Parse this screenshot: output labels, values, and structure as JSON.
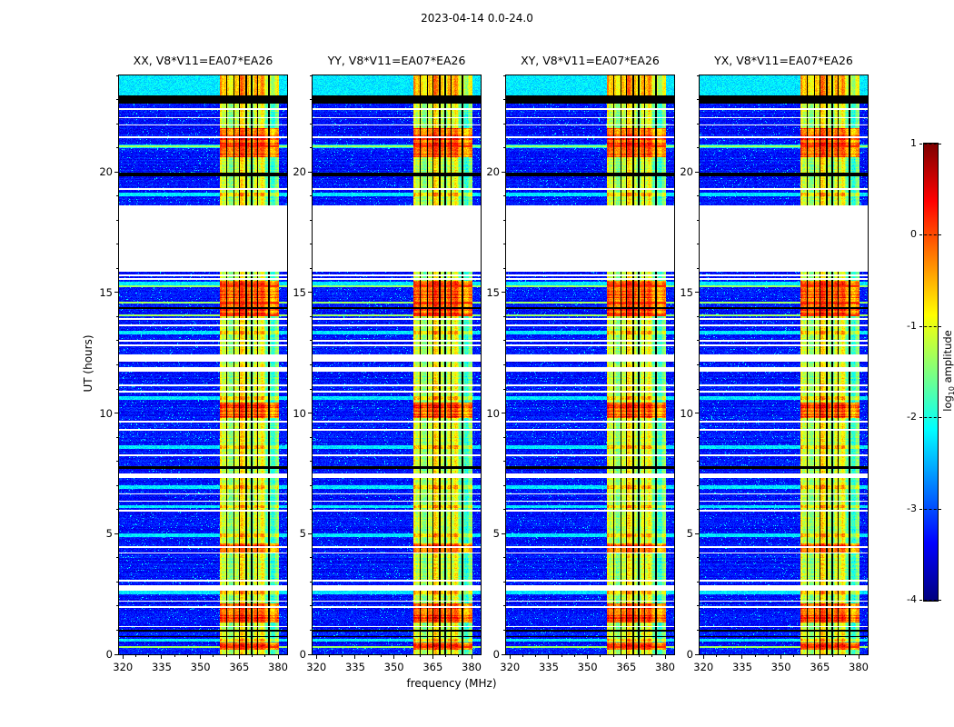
{
  "figure": {
    "title": "2023-04-14 0.0-24.0"
  },
  "axes": {
    "xlabel": "frequency (MHz)",
    "ylabel": "UT (hours)",
    "x_ticks": [
      320,
      335,
      350,
      365,
      380
    ],
    "y_ticks": [
      0,
      5,
      10,
      15,
      20
    ],
    "x_minor_step": 5,
    "y_minor_step": 1
  },
  "colorbar": {
    "label_parts": [
      "log",
      "10",
      " amplitude"
    ],
    "ticks": [
      1,
      0,
      -1,
      -2,
      -3,
      -4
    ],
    "range": [
      -4,
      1
    ]
  },
  "chart_data": {
    "type": "heatmap",
    "title": "2023-04-14 0.0-24.0",
    "panels": [
      "XX, V8*V11=EA07*EA26",
      "YY, V8*V11=EA07*EA26",
      "XY, V8*V11=EA07*EA26",
      "YX, V8*V11=EA07*EA26"
    ],
    "xlabel": "frequency (MHz)",
    "ylabel": "UT (hours)",
    "freq_range_mhz": [
      318.5,
      383.5
    ],
    "time_range_ut": [
      0,
      24
    ],
    "colormap": "jet",
    "amplitude_log10_range": [
      -4,
      1
    ],
    "rfi_band_mhz": [
      357.5,
      380.5
    ],
    "band_dark_channels_mhz": [
      360.2,
      362.9,
      365.1,
      367.6,
      369.9,
      372.1,
      376.4
    ],
    "data_gap_ranges_ut": [
      [
        15.85,
        18.6
      ],
      [
        12.15,
        12.45
      ],
      [
        11.7,
        11.9
      ],
      [
        7.3,
        7.5
      ],
      [
        2.65,
        2.85
      ]
    ],
    "thin_gap_lines_ut": [
      22.6,
      22.25,
      21.95,
      21.45,
      19.3,
      15.7,
      15.55,
      13.9,
      13.65,
      13.0,
      12.8,
      11.15,
      10.9,
      9.65,
      9.3,
      8.25,
      6.65,
      6.35,
      5.95,
      4.45,
      4.2,
      3.05,
      2.2,
      1.95,
      1.15
    ],
    "flagged_black_ranges_ut": [
      [
        22.85,
        23.18
      ],
      [
        19.8,
        19.98
      ],
      [
        14.32,
        14.38
      ],
      [
        7.68,
        7.8
      ],
      [
        0.93,
        1.0
      ],
      [
        0.7,
        0.77
      ]
    ],
    "broadband_rfi_ranges_ut": [
      [
        23.18,
        24.0
      ],
      [
        21.0,
        21.15
      ],
      [
        19.0,
        19.15
      ],
      [
        15.3,
        15.45
      ],
      [
        13.25,
        13.4
      ],
      [
        10.55,
        10.7
      ],
      [
        8.5,
        8.65
      ],
      [
        6.85,
        7.0
      ],
      [
        6.05,
        6.18
      ],
      [
        4.85,
        5.0
      ],
      [
        2.5,
        2.62
      ],
      [
        0.52,
        0.64
      ]
    ],
    "strong_band_ranges_ut": [
      [
        20.6,
        21.8
      ],
      [
        14.0,
        15.5
      ],
      [
        9.8,
        10.45
      ],
      [
        4.2,
        4.6
      ],
      [
        1.3,
        2.1
      ],
      [
        0.18,
        0.5
      ]
    ],
    "strong_broadband_lines_ut": [
      21.05,
      15.25,
      14.57,
      14.05,
      0.3
    ]
  }
}
